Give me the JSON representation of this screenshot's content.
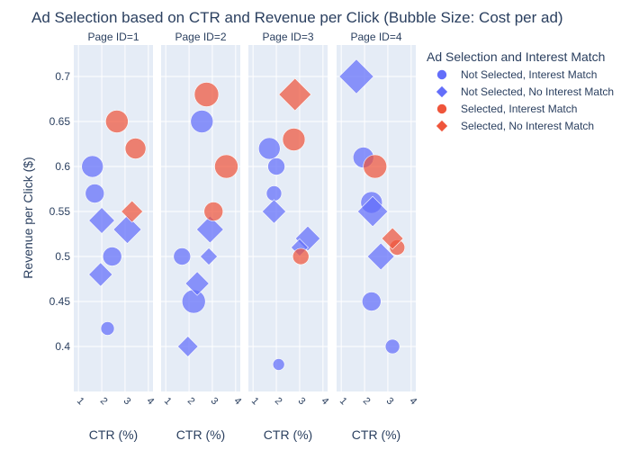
{
  "chart_data": {
    "type": "scatter",
    "title": "Ad Selection based on CTR and Revenue per Click (Bubble Size: Cost per ad)",
    "xlabel": "CTR (%)",
    "ylabel": "Revenue per Click ($)",
    "xlim": [
      0.8,
      4.2
    ],
    "ylim": [
      0.35,
      0.735
    ],
    "x_ticks": [
      1,
      2,
      3,
      4
    ],
    "y_ticks": [
      0.4,
      0.45,
      0.5,
      0.55,
      0.6,
      0.65,
      0.7
    ],
    "y_tick_labels": [
      "0.4",
      "0.45",
      "0.5",
      "0.55",
      "0.6",
      "0.65",
      "0.7"
    ],
    "legend_title": "Ad Selection and Interest Match",
    "legend_position": "top-right",
    "grid": true,
    "series": [
      {
        "name": "Not Selected, Interest Match",
        "symbol": "circle",
        "color": "#636efa"
      },
      {
        "name": "Not Selected, No Interest Match",
        "symbol": "diamond",
        "color": "#636efa"
      },
      {
        "name": "Selected, Interest Match",
        "symbol": "circle",
        "color": "#ef553b"
      },
      {
        "name": "Selected, No Interest Match",
        "symbol": "diamond",
        "color": "#ef553b"
      }
    ],
    "facets": [
      {
        "label": "Page ID=1",
        "points": [
          {
            "x": 1.6,
            "y": 0.6,
            "size": 24,
            "series": 0
          },
          {
            "x": 1.7,
            "y": 0.57,
            "size": 21,
            "series": 0
          },
          {
            "x": 2.45,
            "y": 0.5,
            "size": 21,
            "series": 0
          },
          {
            "x": 2.25,
            "y": 0.42,
            "size": 15,
            "series": 0
          },
          {
            "x": 2.0,
            "y": 0.54,
            "size": 24,
            "series": 1
          },
          {
            "x": 1.95,
            "y": 0.48,
            "size": 22,
            "series": 1
          },
          {
            "x": 3.1,
            "y": 0.53,
            "size": 26,
            "series": 1
          },
          {
            "x": 2.65,
            "y": 0.65,
            "size": 25,
            "series": 2
          },
          {
            "x": 3.45,
            "y": 0.62,
            "size": 23,
            "series": 2
          },
          {
            "x": 3.3,
            "y": 0.55,
            "size": 20,
            "series": 3
          }
        ]
      },
      {
        "label": "Page ID=2",
        "points": [
          {
            "x": 2.55,
            "y": 0.65,
            "size": 25,
            "series": 0
          },
          {
            "x": 1.7,
            "y": 0.5,
            "size": 19,
            "series": 0
          },
          {
            "x": 2.2,
            "y": 0.45,
            "size": 26,
            "series": 0
          },
          {
            "x": 2.9,
            "y": 0.53,
            "size": 25,
            "series": 1
          },
          {
            "x": 2.85,
            "y": 0.5,
            "size": 16,
            "series": 1
          },
          {
            "x": 2.35,
            "y": 0.47,
            "size": 22,
            "series": 1
          },
          {
            "x": 1.95,
            "y": 0.4,
            "size": 19,
            "series": 1
          },
          {
            "x": 2.75,
            "y": 0.68,
            "size": 27,
            "series": 2
          },
          {
            "x": 3.6,
            "y": 0.6,
            "size": 26,
            "series": 2
          },
          {
            "x": 3.05,
            "y": 0.55,
            "size": 21,
            "series": 2
          }
        ]
      },
      {
        "label": "Page ID=3",
        "points": [
          {
            "x": 1.7,
            "y": 0.62,
            "size": 24,
            "series": 0
          },
          {
            "x": 2.0,
            "y": 0.6,
            "size": 19,
            "series": 0
          },
          {
            "x": 1.9,
            "y": 0.57,
            "size": 17,
            "series": 0
          },
          {
            "x": 2.1,
            "y": 0.38,
            "size": 13,
            "series": 0
          },
          {
            "x": 1.9,
            "y": 0.55,
            "size": 22,
            "series": 1
          },
          {
            "x": 3.35,
            "y": 0.52,
            "size": 23,
            "series": 1
          },
          {
            "x": 3.0,
            "y": 0.51,
            "size": 16,
            "series": 1
          },
          {
            "x": 2.8,
            "y": 0.68,
            "size": 30,
            "series": 3
          },
          {
            "x": 2.75,
            "y": 0.63,
            "size": 25,
            "series": 2
          },
          {
            "x": 3.05,
            "y": 0.5,
            "size": 18,
            "series": 2
          }
        ]
      },
      {
        "label": "Page ID=4",
        "points": [
          {
            "x": 1.65,
            "y": 0.7,
            "size": 32,
            "series": 1
          },
          {
            "x": 1.95,
            "y": 0.61,
            "size": 23,
            "series": 0
          },
          {
            "x": 2.3,
            "y": 0.56,
            "size": 24,
            "series": 0
          },
          {
            "x": 2.3,
            "y": 0.45,
            "size": 21,
            "series": 0
          },
          {
            "x": 3.2,
            "y": 0.4,
            "size": 16,
            "series": 0
          },
          {
            "x": 2.35,
            "y": 0.55,
            "size": 28,
            "series": 1
          },
          {
            "x": 2.7,
            "y": 0.5,
            "size": 25,
            "series": 1
          },
          {
            "x": 2.45,
            "y": 0.6,
            "size": 26,
            "series": 2
          },
          {
            "x": 3.4,
            "y": 0.51,
            "size": 17,
            "series": 2
          },
          {
            "x": 3.2,
            "y": 0.52,
            "size": 20,
            "series": 3
          }
        ]
      }
    ]
  }
}
